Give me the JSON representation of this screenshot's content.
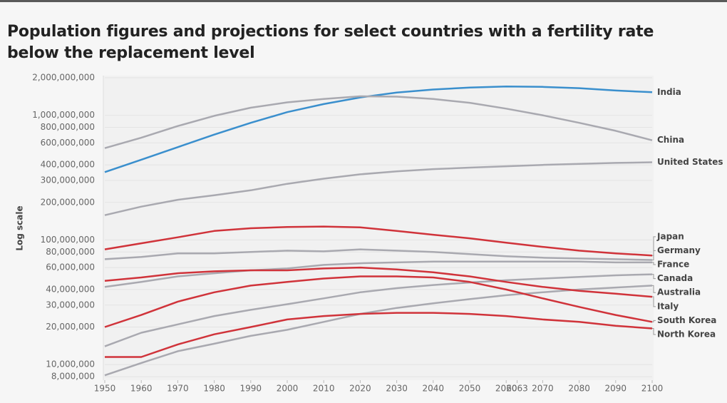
{
  "chart_data": {
    "type": "line",
    "title": "Population figures and projections for select countries with a fertility rate below the replacement level",
    "y_label": "Log scale",
    "log_scale": true,
    "grid": true,
    "x": [
      1950,
      1960,
      1970,
      1980,
      1990,
      2000,
      2010,
      2020,
      2030,
      2040,
      2050,
      2060,
      2070,
      2080,
      2090,
      2100
    ],
    "xlim": [
      1950,
      2100
    ],
    "xticks": [
      1950,
      1960,
      1970,
      1980,
      1990,
      2000,
      2010,
      2020,
      2030,
      2040,
      2050,
      2060,
      2063,
      2070,
      2080,
      2090,
      2100
    ],
    "ylim": [
      7800000,
      2000000000
    ],
    "yticks": [
      {
        "value": 8000000,
        "label": "8,000,000"
      },
      {
        "value": 10000000,
        "label": "10,000,000"
      },
      {
        "value": 20000000,
        "label": "20,000,000"
      },
      {
        "value": 30000000,
        "label": "30,000,000"
      },
      {
        "value": 40000000,
        "label": "40,000,000"
      },
      {
        "value": 60000000,
        "label": "60,000,000"
      },
      {
        "value": 80000000,
        "label": "80,000,000"
      },
      {
        "value": 100000000,
        "label": "100,000,000"
      },
      {
        "value": 200000000,
        "label": "200,000,000"
      },
      {
        "value": 300000000,
        "label": "300,000,000"
      },
      {
        "value": 400000000,
        "label": "400,000,000"
      },
      {
        "value": 600000000,
        "label": "600,000,000"
      },
      {
        "value": 800000000,
        "label": "800,000,000"
      },
      {
        "value": 1000000000,
        "label": "1,000,000,000"
      },
      {
        "value": 2000000000,
        "label": "2,000,000,000"
      }
    ],
    "series": [
      {
        "name": "India",
        "color": "#3a8fcd",
        "values": [
          350000000,
          440000000,
          555000000,
          700000000,
          870000000,
          1060000000,
          1230000000,
          1390000000,
          1520000000,
          1610000000,
          1670000000,
          1700000000,
          1690000000,
          1650000000,
          1580000000,
          1530000000
        ]
      },
      {
        "name": "China",
        "color": "#a9a9b0",
        "values": [
          545000000,
          660000000,
          820000000,
          990000000,
          1150000000,
          1270000000,
          1350000000,
          1420000000,
          1410000000,
          1350000000,
          1260000000,
          1130000000,
          1000000000,
          870000000,
          750000000,
          630000000
        ]
      },
      {
        "name": "United States",
        "color": "#a9a9b0",
        "values": [
          158000000,
          185000000,
          210000000,
          228000000,
          250000000,
          282000000,
          310000000,
          336000000,
          355000000,
          370000000,
          380000000,
          390000000,
          400000000,
          408000000,
          415000000,
          420000000
        ]
      },
      {
        "name": "Japan",
        "color": "#d0333a",
        "values": [
          84000000,
          94000000,
          105000000,
          118000000,
          124000000,
          127000000,
          128000000,
          126000000,
          118000000,
          110000000,
          103000000,
          95000000,
          88000000,
          82000000,
          78000000,
          75000000
        ]
      },
      {
        "name": "Germany",
        "color": "#a9a9b0",
        "values": [
          70000000,
          73000000,
          78000000,
          78000000,
          80000000,
          82000000,
          81000000,
          84000000,
          82000000,
          80000000,
          77000000,
          74000000,
          72000000,
          71000000,
          70000000,
          69000000
        ]
      },
      {
        "name": "France",
        "color": "#a9a9b0",
        "values": [
          42000000,
          46000000,
          51000000,
          54000000,
          57000000,
          59000000,
          63000000,
          65000000,
          66000000,
          67000000,
          67000000,
          67000000,
          67000000,
          67000000,
          66000000,
          66000000
        ]
      },
      {
        "name": "Canada",
        "color": "#a9a9b0",
        "values": [
          14000000,
          18000000,
          21000000,
          24500000,
          27500000,
          30500000,
          34000000,
          38000000,
          41000000,
          43500000,
          45500000,
          47500000,
          49000000,
          50500000,
          52000000,
          53000000
        ]
      },
      {
        "name": "Australia",
        "color": "#a9a9b0",
        "values": [
          8200000,
          10300000,
          12800000,
          14700000,
          17000000,
          19000000,
          22000000,
          25500000,
          28500000,
          31000000,
          33500000,
          36000000,
          38000000,
          40000000,
          41500000,
          43000000
        ]
      },
      {
        "name": "Italy",
        "color": "#d0333a",
        "values": [
          47000000,
          50000000,
          54000000,
          56000000,
          57000000,
          57000000,
          59000000,
          60000000,
          58000000,
          55000000,
          51000000,
          46000000,
          42000000,
          39000000,
          37000000,
          35000000
        ]
      },
      {
        "name": "South Korea",
        "color": "#d0333a",
        "values": [
          20000000,
          25000000,
          32000000,
          38000000,
          43000000,
          46000000,
          49000000,
          51000000,
          51000000,
          50000000,
          46000000,
          40000000,
          34000000,
          29000000,
          25000000,
          22000000
        ]
      },
      {
        "name": "North Korea",
        "color": "#d0333a",
        "values": [
          11500000,
          11500000,
          14500000,
          17500000,
          20000000,
          23000000,
          24500000,
          25500000,
          26000000,
          26000000,
          25500000,
          24500000,
          23000000,
          22000000,
          20500000,
          19500000
        ]
      }
    ]
  }
}
